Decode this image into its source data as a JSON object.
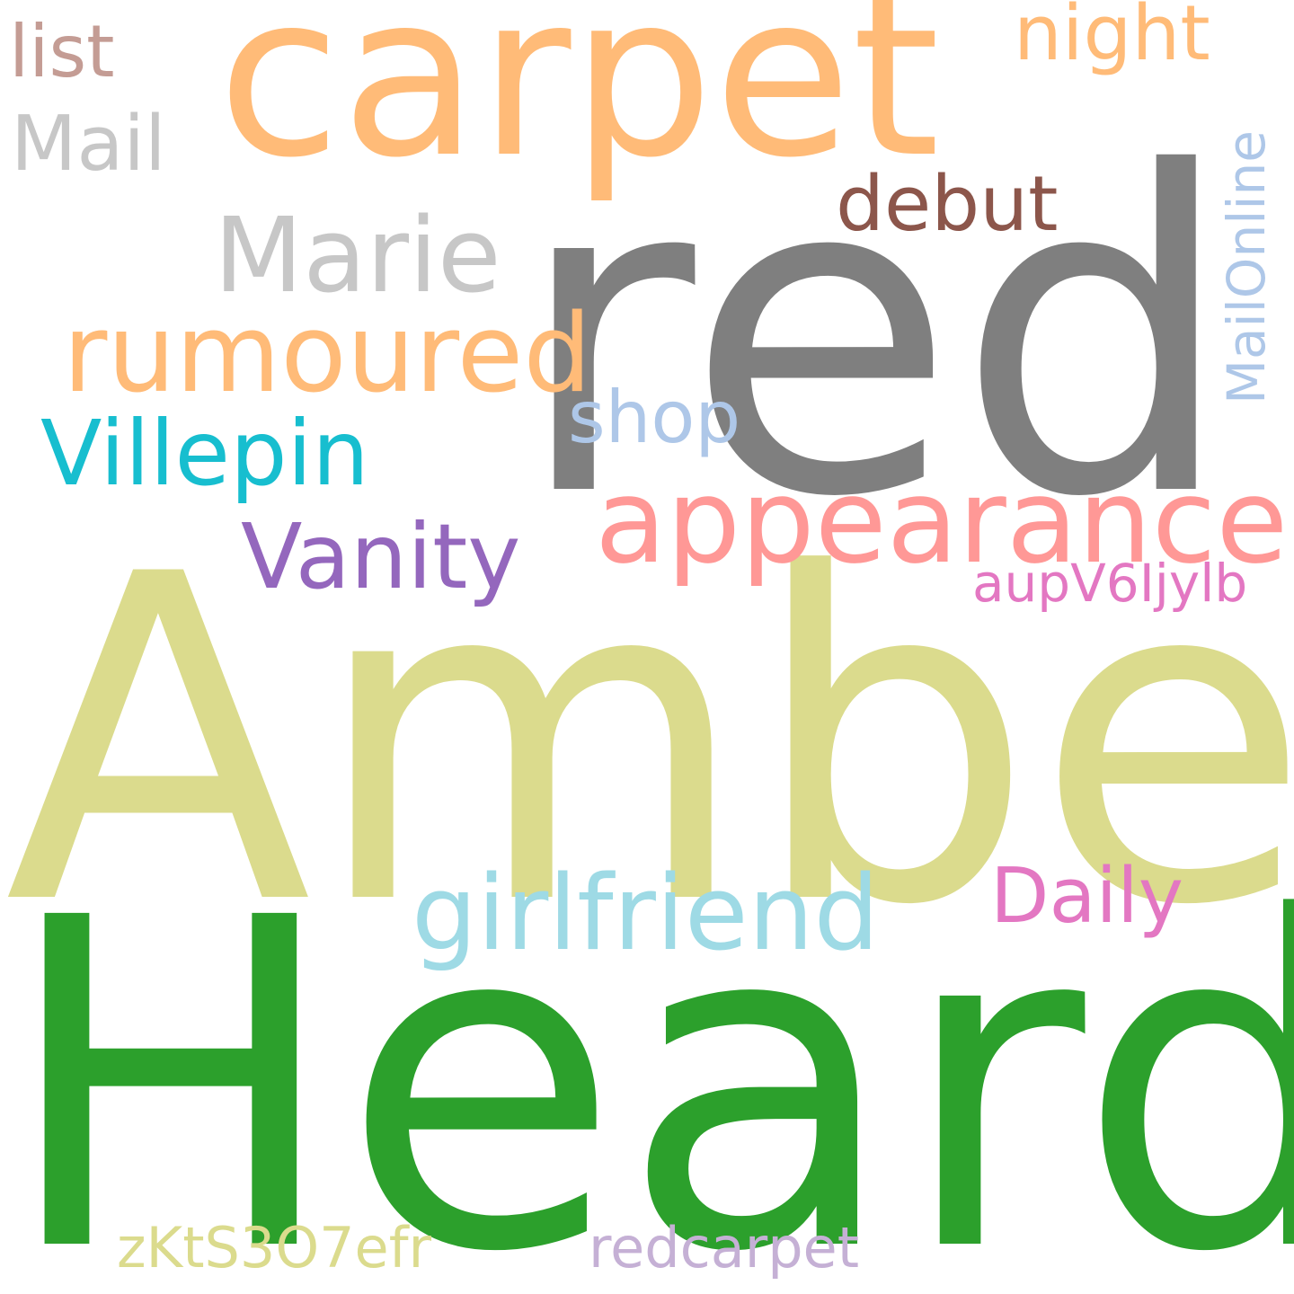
{
  "words": {
    "amber": {
      "text": "Amber",
      "color": "#dbdb8d"
    },
    "heard": {
      "text": "Heard",
      "color": "#2ca02c"
    },
    "red": {
      "text": "red",
      "color": "#7f7f7f"
    },
    "carpet": {
      "text": "carpet",
      "color": "#ffbb78"
    },
    "appearance": {
      "text": "appearance",
      "color": "#ff9896"
    },
    "rumoured": {
      "text": "rumoured",
      "color": "#ffbb78"
    },
    "girlfriend": {
      "text": "girlfriend",
      "color": "#9edae5"
    },
    "villepin": {
      "text": "Villepin",
      "color": "#17becf"
    },
    "marie": {
      "text": "Marie",
      "color": "#c7c7c7"
    },
    "vanity": {
      "text": "Vanity",
      "color": "#9467bd"
    },
    "debut": {
      "text": "debut",
      "color": "#8c564b"
    },
    "night": {
      "text": "night",
      "color": "#ffbb78"
    },
    "daily": {
      "text": "Daily",
      "color": "#e377c2"
    },
    "shop": {
      "text": "shop",
      "color": "#aec7e8"
    },
    "list": {
      "text": "list",
      "color": "#c49c94"
    },
    "mail": {
      "text": "Mail",
      "color": "#c7c7c7"
    },
    "aupv": {
      "text": "aupV6Ijylb",
      "color": "#e377c2"
    },
    "zkts": {
      "text": "zKtS3O7efr",
      "color": "#dbdb8d"
    },
    "redcarpet": {
      "text": "redcarpet",
      "color": "#c5b0d5"
    },
    "mailonline": {
      "text": "MailOnline",
      "color": "#aec7e8"
    }
  }
}
